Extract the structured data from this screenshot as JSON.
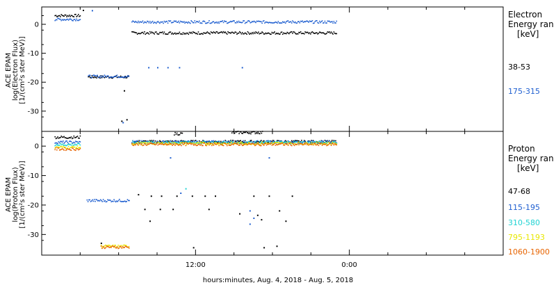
{
  "chart_data": [
    {
      "type": "scatter",
      "panel": "top",
      "ylabel": [
        "ACE EPAM",
        "log(Electron Flux)",
        "[1/(cm²s ster MeV)]"
      ],
      "yticks": [
        0,
        -10,
        -20,
        -30
      ],
      "ylim": [
        -37,
        6
      ],
      "legend_title": [
        "Electron",
        "Energy ran",
        "[keV]"
      ],
      "series": [
        {
          "name": "38-53",
          "color": "#000000",
          "segments": [
            {
              "x0": 1.0,
              "x1": 3.0,
              "y": 3.0
            },
            {
              "x0": 3.6,
              "x1": 6.8,
              "y": -18.2
            },
            {
              "x0": 7.0,
              "x1": 23.0,
              "y": -3.0
            }
          ],
          "points": [
            [
              3.2,
              4.8
            ],
            [
              6.4,
              -23.0
            ],
            [
              6.2,
              -33.5
            ],
            [
              6.6,
              -33.0
            ]
          ]
        },
        {
          "name": "175-315",
          "color": "#1f5fd0",
          "segments": [
            {
              "x0": 1.0,
              "x1": 3.0,
              "y": 1.7
            },
            {
              "x0": 3.6,
              "x1": 6.8,
              "y": -18.0
            },
            {
              "x0": 7.0,
              "x1": 23.0,
              "y": 0.8
            }
          ],
          "points": [
            [
              3.9,
              4.7
            ],
            [
              6.3,
              -34.0
            ],
            [
              8.3,
              -15.0
            ],
            [
              9.0,
              -15.0
            ],
            [
              9.8,
              -15.0
            ],
            [
              10.7,
              -15.0
            ],
            [
              15.6,
              -15.0
            ]
          ]
        }
      ]
    },
    {
      "type": "scatter",
      "panel": "bottom",
      "ylabel": [
        "ACE EPAM",
        "log(Proton Flux)",
        "[1/(cm²s ster MeV)]"
      ],
      "yticks": [
        0,
        -10,
        -20,
        -30
      ],
      "ylim": [
        -37,
        5
      ],
      "legend_title": [
        "Proton",
        "Energy ran",
        "[keV]"
      ],
      "series": [
        {
          "name": "47-68",
          "color": "#000000",
          "segments": [
            {
              "x0": 1.0,
              "x1": 3.0,
              "y": 3.0
            },
            {
              "x0": 7.0,
              "x1": 23.0,
              "y": 1.5
            },
            {
              "x0": 10.3,
              "x1": 11.0,
              "y": 4.2
            },
            {
              "x0": 14.8,
              "x1": 17.2,
              "y": 4.6
            }
          ],
          "points": [
            [
              7.5,
              -16.5
            ],
            [
              8.5,
              -17.0
            ],
            [
              9.3,
              -17.0
            ],
            [
              10.5,
              -17.0
            ],
            [
              11.7,
              -17.0
            ],
            [
              12.7,
              -17.0
            ],
            [
              13.5,
              -17.0
            ],
            [
              16.5,
              -17.0
            ],
            [
              17.7,
              -17.0
            ],
            [
              19.5,
              -17.0
            ],
            [
              8.0,
              -21.5
            ],
            [
              9.2,
              -21.5
            ],
            [
              10.2,
              -21.5
            ],
            [
              13.0,
              -21.5
            ],
            [
              15.4,
              -23.0
            ],
            [
              16.8,
              -23.5
            ],
            [
              18.5,
              -22.0
            ],
            [
              8.4,
              -25.5
            ],
            [
              17.1,
              -25.0
            ],
            [
              19.0,
              -25.5
            ],
            [
              4.6,
              -33.0
            ],
            [
              11.8,
              -34.5
            ],
            [
              17.3,
              -34.5
            ],
            [
              18.3,
              -34.0
            ]
          ]
        },
        {
          "name": "115-195",
          "color": "#1f5fd0",
          "segments": [
            {
              "x0": 1.0,
              "x1": 3.0,
              "y": 1.3
            },
            {
              "x0": 3.5,
              "x1": 6.8,
              "y": -18.5
            },
            {
              "x0": 7.0,
              "x1": 23.0,
              "y": 1.4
            }
          ],
          "points": [
            [
              10.0,
              -4.0
            ],
            [
              17.7,
              -4.0
            ],
            [
              16.2,
              -22.0
            ],
            [
              16.5,
              -24.5
            ],
            [
              16.2,
              -26.5
            ],
            [
              10.8,
              -16.0
            ]
          ]
        },
        {
          "name": "310-580",
          "color": "#1ed2d2",
          "segments": [
            {
              "x0": 1.0,
              "x1": 3.0,
              "y": 0.5
            },
            {
              "x0": 7.0,
              "x1": 23.0,
              "y": 1.2
            }
          ],
          "points": [
            [
              11.2,
              -14.5
            ]
          ]
        },
        {
          "name": "795-1193",
          "color": "#e8e800",
          "segments": [
            {
              "x0": 1.0,
              "x1": 3.0,
              "y": -0.4
            },
            {
              "x0": 4.6,
              "x1": 6.8,
              "y": -34.0
            },
            {
              "x0": 7.0,
              "x1": 23.0,
              "y": 0.9
            }
          ],
          "points": []
        },
        {
          "name": "1060-1900",
          "color": "#e86400",
          "segments": [
            {
              "x0": 1.0,
              "x1": 3.0,
              "y": -1.0
            },
            {
              "x0": 4.6,
              "x1": 6.8,
              "y": -34.3
            },
            {
              "x0": 7.0,
              "x1": 23.0,
              "y": 0.6
            }
          ],
          "points": []
        }
      ]
    }
  ],
  "x_axis": {
    "ticks": [
      {
        "value": 12,
        "label": "12:00"
      },
      {
        "value": 24,
        "label": "0:00"
      }
    ],
    "minor_ticks": [
      3,
      6,
      9,
      15,
      18,
      21,
      27,
      30,
      33
    ],
    "xlim": [
      0,
      36
    ],
    "xlabel": "hours:minutes, Aug.  4, 2018 - Aug.  5, 2018"
  },
  "legend_entries_top": [
    "38-53",
    "175-315"
  ],
  "legend_entries_bottom": [
    "47-68",
    "115-195",
    "310-580",
    "795-1193",
    "1060-1900"
  ]
}
